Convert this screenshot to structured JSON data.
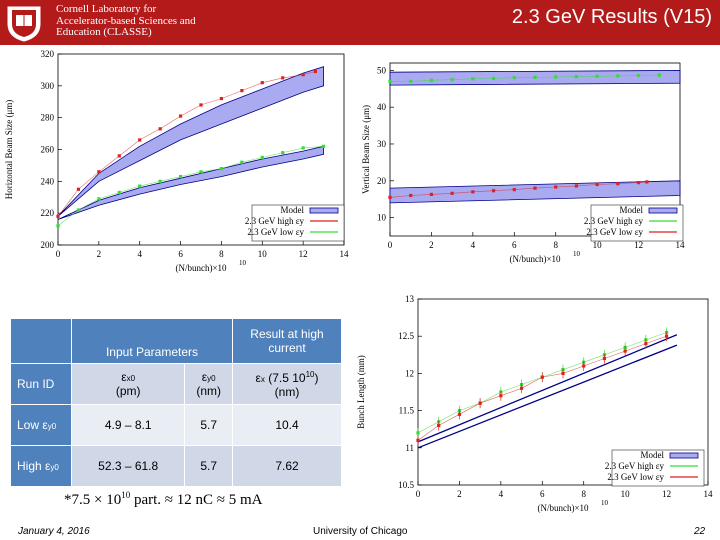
{
  "header": {
    "org_lines": "Cornell Laboratory for\nAccelerator-based Sciences and\nEducation (CLASSE)",
    "title": "2.3 GeV Results (V15)"
  },
  "colors": {
    "header_bg": "#b31b1b",
    "band": "#aaaaf0",
    "green": "#33dd33",
    "red": "#dd2222",
    "navy": "#000088"
  },
  "chart_data": [
    {
      "type": "line",
      "name": "horizontal-beam-size",
      "title": "",
      "xlabel": "(N/bunch)×10",
      "xlabel_exp": "10",
      "ylabel": "Horizontal Beam Size (μm)",
      "xlim": [
        0,
        14
      ],
      "ylim": [
        200,
        320
      ],
      "xticks": [
        0,
        2,
        4,
        6,
        8,
        10,
        12,
        14
      ],
      "yticks": [
        200,
        220,
        240,
        260,
        280,
        300,
        320
      ],
      "legend": [
        "Model",
        "2.3 GeV high εy",
        "2.3 GeV low εy"
      ],
      "legend_position": "bottom-right",
      "series": [
        {
          "name": "Model high εy band",
          "kind": "band",
          "x": [
            0,
            2,
            4,
            6,
            8,
            10,
            12,
            13
          ],
          "lo": [
            218,
            240,
            253,
            266,
            276,
            286,
            296,
            300
          ],
          "hi": [
            218,
            245,
            262,
            276,
            288,
            298,
            308,
            312
          ]
        },
        {
          "name": "2.3 GeV high εy",
          "kind": "points",
          "color": "red",
          "x": [
            0,
            1,
            2,
            3,
            4,
            5,
            6,
            7,
            8,
            9,
            10,
            11,
            12,
            12.6
          ],
          "y": [
            218,
            235,
            246,
            256,
            266,
            273,
            281,
            288,
            292,
            297,
            302,
            305,
            307,
            309
          ]
        },
        {
          "name": "Model low εy band",
          "kind": "band",
          "x": [
            0,
            2,
            4,
            6,
            8,
            10,
            12,
            13
          ],
          "lo": [
            216,
            225,
            232,
            238,
            243,
            249,
            254,
            257
          ],
          "hi": [
            216,
            228,
            236,
            242,
            248,
            254,
            259,
            262
          ]
        },
        {
          "name": "2.3 GeV low εy",
          "kind": "points",
          "color": "green",
          "x": [
            0,
            1,
            2,
            3,
            4,
            5,
            6,
            7,
            8,
            9,
            10,
            11,
            12,
            13
          ],
          "y": [
            212,
            222,
            229,
            233,
            237,
            240,
            243,
            246,
            248,
            252,
            255,
            258,
            261,
            262
          ]
        }
      ]
    },
    {
      "type": "line",
      "name": "vertical-beam-size",
      "xlabel": "(N/bunch)×10",
      "xlabel_exp": "10",
      "ylabel": "Vertical Beam Size (μm)",
      "xlim": [
        0,
        14
      ],
      "ylim": [
        5,
        52
      ],
      "xticks": [
        0,
        2,
        4,
        6,
        8,
        10,
        12,
        14
      ],
      "yticks": [
        10,
        20,
        30,
        40,
        50
      ],
      "legend": [
        "Model",
        "2.3 GeV high εy",
        "2.3 GeV low εy"
      ],
      "legend_position": "bottom-right",
      "series": [
        {
          "name": "Model high εy band",
          "kind": "band",
          "x": [
            0,
            14
          ],
          "lo": [
            46,
            46.5
          ],
          "hi": [
            49.5,
            50
          ]
        },
        {
          "name": "2.3 GeV high εy",
          "kind": "points",
          "color": "green",
          "x": [
            0,
            1,
            2,
            3,
            4,
            5,
            6,
            7,
            8,
            9,
            10,
            11,
            12,
            13
          ],
          "y": [
            47,
            47,
            47.3,
            47.5,
            47.7,
            47.8,
            48,
            48.1,
            48.2,
            48.3,
            48.4,
            48.5,
            48.6,
            48.7
          ]
        },
        {
          "name": "Model low εy band",
          "kind": "band",
          "x": [
            0,
            14
          ],
          "lo": [
            14,
            16
          ],
          "hi": [
            18,
            20
          ]
        },
        {
          "name": "2.3 GeV low εy",
          "kind": "points",
          "color": "red",
          "x": [
            0,
            1,
            2,
            3,
            4,
            5,
            6,
            7,
            8,
            9,
            10,
            11,
            12,
            12.4
          ],
          "y": [
            15.5,
            16,
            16.3,
            16.6,
            17,
            17.3,
            17.6,
            18,
            18.3,
            18.6,
            19,
            19.2,
            19.5,
            19.7
          ]
        }
      ]
    },
    {
      "type": "line",
      "name": "bunch-length",
      "xlabel": "(N/bunch)×10",
      "xlabel_exp": "10",
      "ylabel": "Bunch Length (mm)",
      "xlim": [
        0,
        14
      ],
      "ylim": [
        10.5,
        13
      ],
      "xticks": [
        0,
        2,
        4,
        6,
        8,
        10,
        12,
        14
      ],
      "yticks": [
        10.5,
        11,
        11.5,
        12,
        12.5,
        13
      ],
      "ytick_labels": [
        "10.5",
        "11",
        "11.5",
        "12",
        "12.5",
        "13"
      ],
      "legend": [
        "Model",
        "2.3 GeV high εy",
        "2.3 GeV low εy"
      ],
      "legend_position": "bottom-right",
      "series": [
        {
          "name": "Model upper",
          "kind": "line",
          "color": "navy",
          "x": [
            0,
            12.5
          ],
          "y": [
            11.08,
            12.52
          ]
        },
        {
          "name": "Model lower",
          "kind": "line",
          "color": "navy",
          "x": [
            0,
            12.5
          ],
          "y": [
            11.0,
            12.38
          ]
        },
        {
          "name": "2.3 GeV high εy",
          "kind": "points",
          "color": "green",
          "x": [
            0,
            1,
            2,
            3,
            4,
            5,
            6,
            7,
            8,
            9,
            10,
            11,
            12
          ],
          "y": [
            11.2,
            11.35,
            11.5,
            11.6,
            11.75,
            11.85,
            11.95,
            12.05,
            12.15,
            12.25,
            12.35,
            12.45,
            12.55
          ]
        },
        {
          "name": "2.3 GeV low εy",
          "kind": "points",
          "color": "red",
          "x": [
            0,
            1,
            2,
            3,
            4,
            5,
            6,
            7,
            8,
            9,
            10,
            11,
            12
          ],
          "y": [
            11.1,
            11.3,
            11.45,
            11.6,
            11.7,
            11.8,
            11.95,
            12.0,
            12.1,
            12.2,
            12.3,
            12.4,
            12.5
          ]
        }
      ]
    }
  ],
  "table": {
    "head": {
      "input_params": "Input Parameters",
      "result": "Result at high current"
    },
    "subhead": {
      "run_id": "Run ID",
      "ex_base": "ε",
      "ex_sub": "x0",
      "ex_unit": "(pm)",
      "ey_base": "ε",
      "ey_sub": "y0",
      "ey_unit": "(nm)",
      "res_base": "ε",
      "res_sub": "x",
      "res_rest": " (7.5 10",
      "res_sup": "10",
      "res_end": ")",
      "res_unit": "(nm)"
    },
    "rows": [
      {
        "label_base": "Low ε",
        "label_sub": "y0",
        "ex": "4.9 – 8.1",
        "ey": "5.7",
        "res": "10.4"
      },
      {
        "label_base": "High ε",
        "label_sub": "y0",
        "ex": "52.3 – 61.8",
        "ey": "5.7",
        "res": "7.62"
      }
    ]
  },
  "footnote": "*7.5 × 10",
  "footnote_sup": "10",
  "footnote_rest": " part. ≈ 12 nC ≈ 5 mA",
  "footer": {
    "date": "January 4, 2016",
    "university": "University of Chicago",
    "page": "22"
  }
}
